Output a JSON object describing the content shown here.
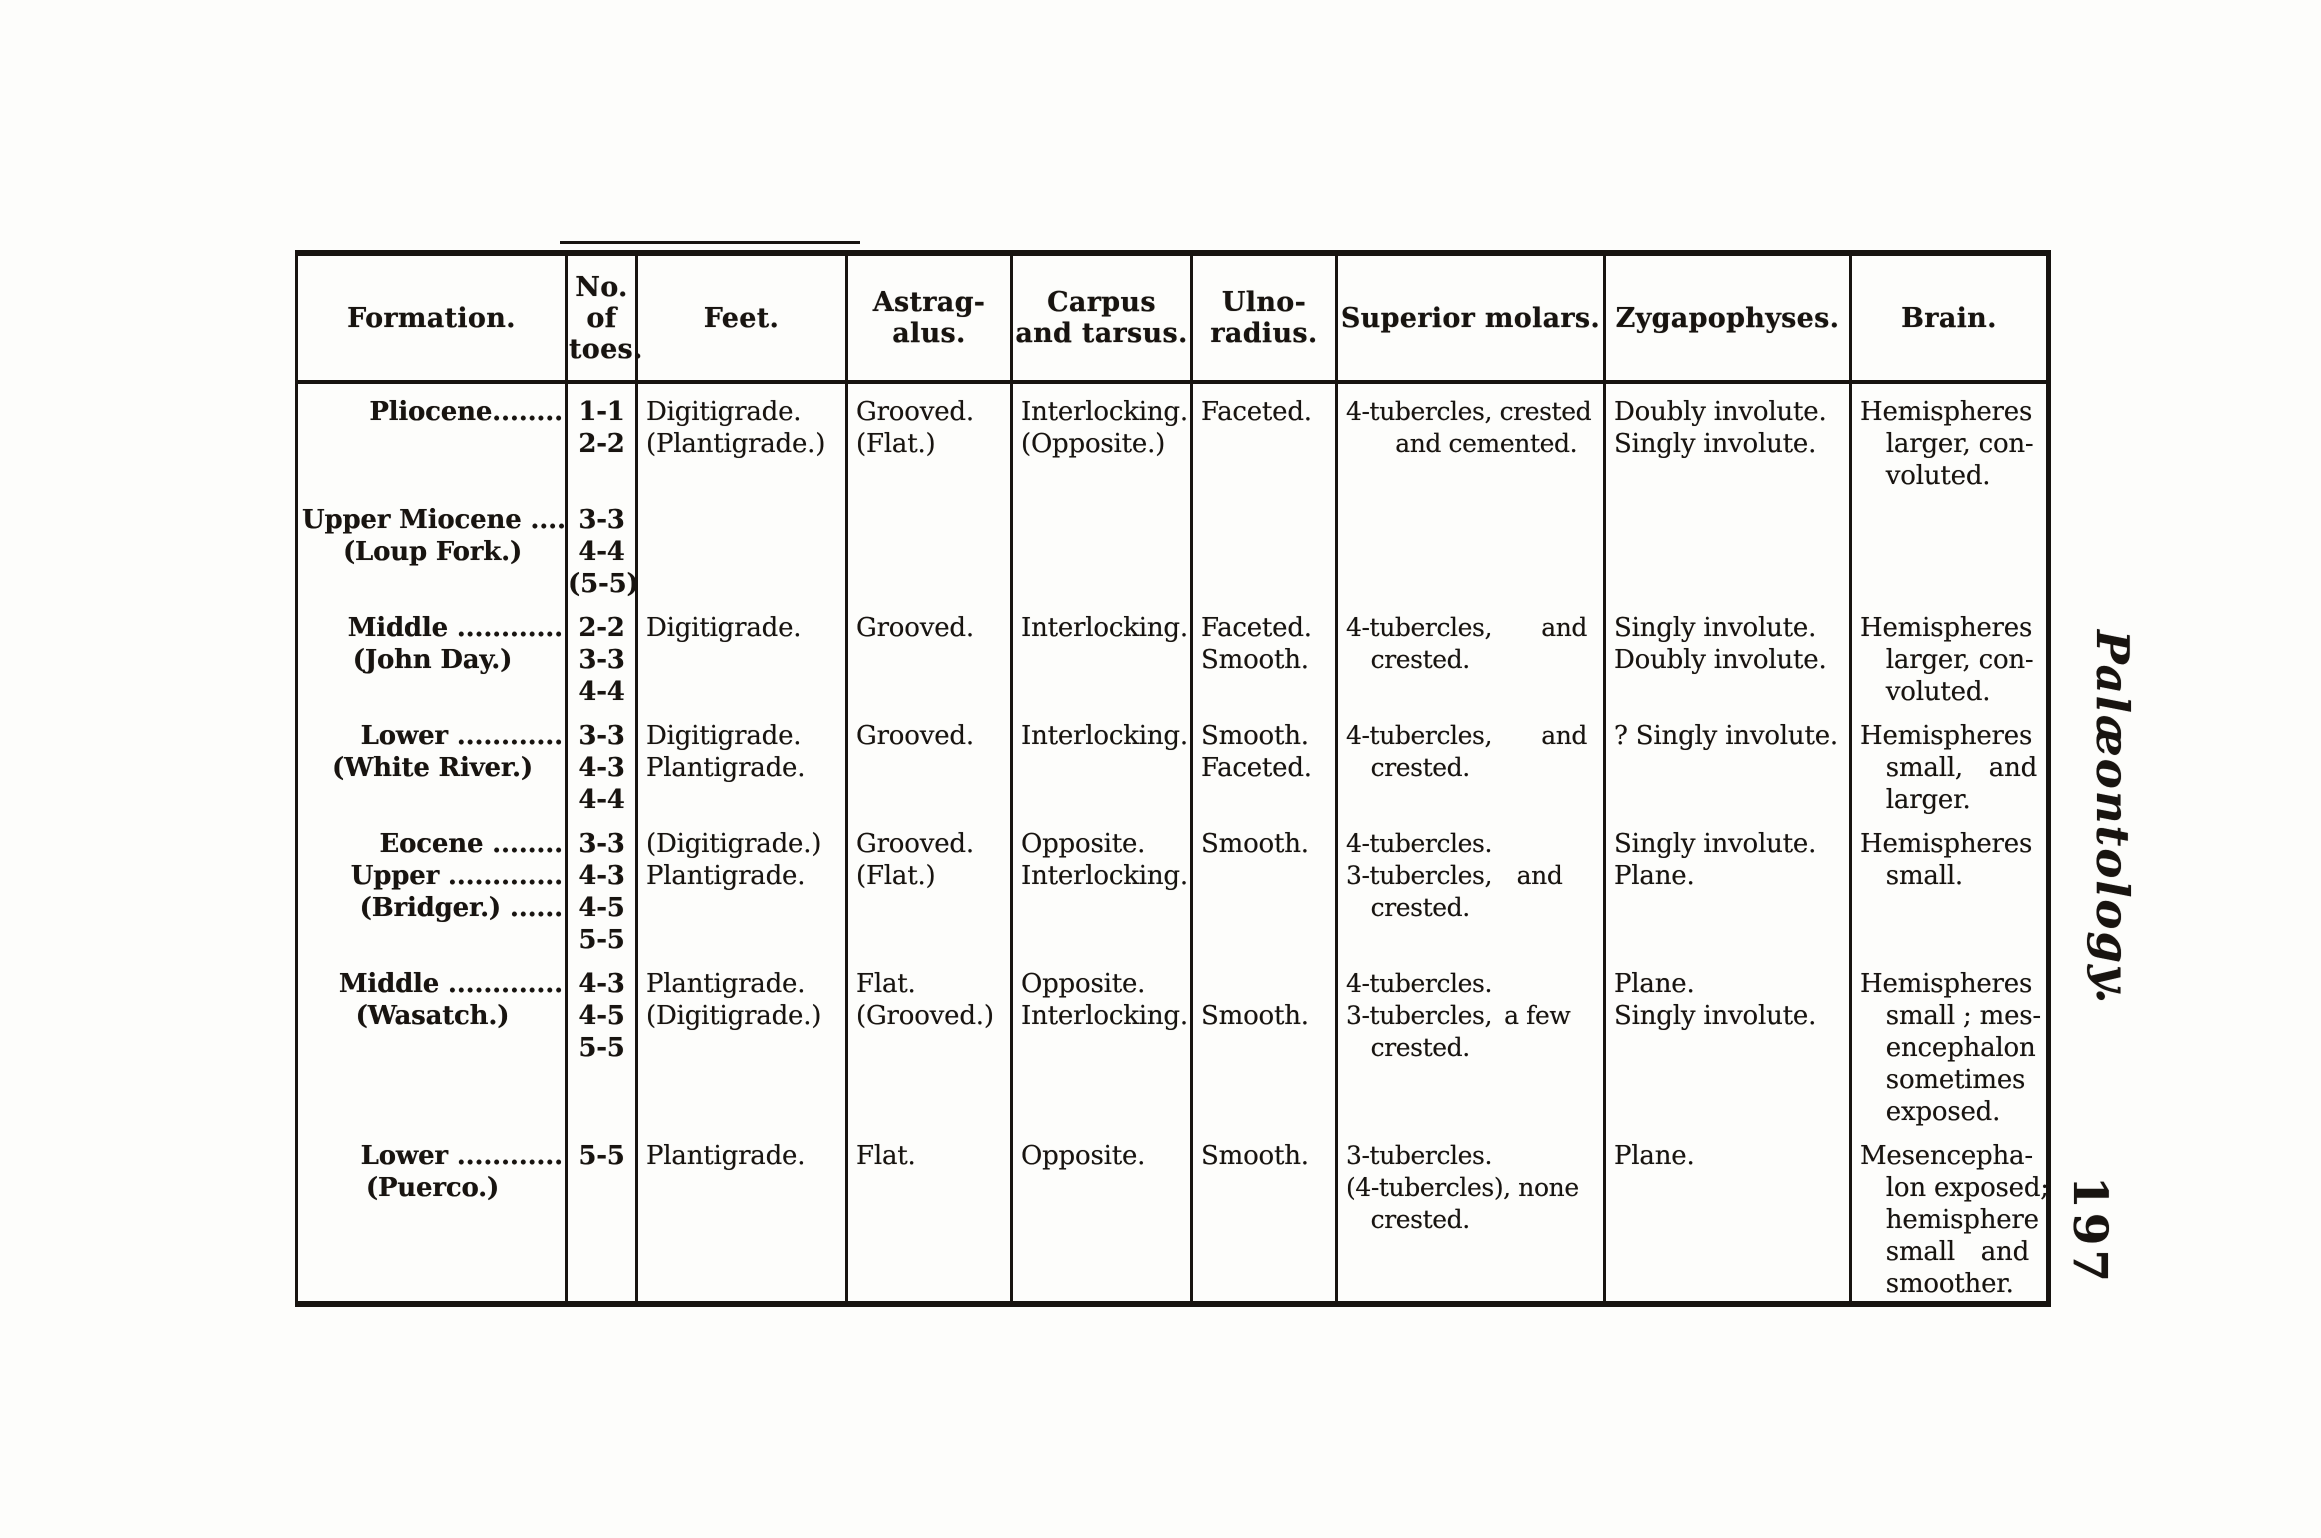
{
  "page": {
    "side_title": "Palæontology.",
    "page_number": "197",
    "ink_color": "#181410",
    "paper_color": "#fdfdfb"
  },
  "table": {
    "headers": [
      {
        "lines": [
          "Formation."
        ]
      },
      {
        "lines": [
          "No.",
          "of",
          "toes."
        ]
      },
      {
        "lines": [
          "Feet."
        ]
      },
      {
        "lines": [
          "Astrag-",
          "alus."
        ]
      },
      {
        "lines": [
          "Carpus",
          "and tarsus."
        ]
      },
      {
        "lines": [
          "Ulno-",
          "radius."
        ]
      },
      {
        "lines": [
          "Superior molars."
        ]
      },
      {
        "lines": [
          "Zygapophyses."
        ]
      },
      {
        "lines": [
          "Brain."
        ]
      }
    ],
    "rows": [
      {
        "formation": [
          "Pliocene........"
        ],
        "toes": [
          "1-1",
          "2-2"
        ],
        "feet": [
          "Digitigrade.",
          "(Plantigrade.)"
        ],
        "astragalus": [
          "Grooved.",
          "(Flat.)"
        ],
        "carpus": [
          "Interlocking.",
          "(Opposite.)"
        ],
        "ulno_radius": [
          "Faceted."
        ],
        "superior_molars": [
          "4-tubercles, crested",
          "  and cemented."
        ],
        "zygapophyses": [
          "Doubly involute.",
          "Singly involute."
        ],
        "brain": [
          "Hemispheres",
          " larger, con-",
          " voluted."
        ]
      },
      {
        "formation": [
          "Upper Miocene ....",
          "(Loup Fork.)"
        ],
        "toes": [
          "3-3",
          "4-4",
          "(5-5)"
        ],
        "feet": [],
        "astragalus": [],
        "carpus": [],
        "ulno_radius": [],
        "superior_molars": [],
        "zygapophyses": [],
        "brain": []
      },
      {
        "formation": [
          "Middle ............",
          "(John Day.)"
        ],
        "toes": [
          "2-2",
          "3-3",
          "4-4"
        ],
        "feet": [
          "Digitigrade."
        ],
        "astragalus": [
          "Grooved."
        ],
        "carpus": [
          "Interlocking."
        ],
        "ulno_radius": [
          "Faceted.",
          "Smooth."
        ],
        "superior_molars": [
          "4-tubercles,  and",
          " crested."
        ],
        "zygapophyses": [
          "Singly involute.",
          "Doubly involute."
        ],
        "brain": [
          "Hemispheres",
          " larger, con-",
          " voluted."
        ]
      },
      {
        "formation": [
          "Lower ............",
          "(White River.)"
        ],
        "toes": [
          "3-3",
          "4-3",
          "4-4"
        ],
        "feet": [
          "Digitigrade.",
          "Plantigrade."
        ],
        "astragalus": [
          "Grooved."
        ],
        "carpus": [
          "Interlocking."
        ],
        "ulno_radius": [
          "Smooth.",
          "Faceted."
        ],
        "superior_molars": [
          "4-tubercles,  and",
          " crested."
        ],
        "zygapophyses": [
          "? Singly involute."
        ],
        "brain": [
          "Hemispheres",
          " small, and",
          " larger."
        ]
      },
      {
        "formation": [
          "Eocene ........",
          "Upper .............",
          "(Bridger.) ......"
        ],
        "toes": [
          "3-3",
          "4-3",
          "4-5",
          "5-5"
        ],
        "feet": [
          "(Digitigrade.)",
          "Plantigrade."
        ],
        "astragalus": [
          "Grooved.",
          "(Flat.)"
        ],
        "carpus": [
          "Opposite.",
          "Interlocking."
        ],
        "ulno_radius": [
          "Smooth."
        ],
        "superior_molars": [
          "4-tubercles.",
          "3-tubercles, and",
          " crested."
        ],
        "zygapophyses": [
          "Singly involute.",
          "Plane."
        ],
        "brain": [
          "Hemispheres",
          " small."
        ]
      },
      {
        "formation": [
          "Middle .............",
          "(Wasatch.)"
        ],
        "toes": [
          "4-3",
          "4-5",
          "5-5"
        ],
        "feet": [
          "Plantigrade.",
          "(Digitigrade.)"
        ],
        "astragalus": [
          "Flat.",
          "(Grooved.)"
        ],
        "carpus": [
          "Opposite.",
          "Interlocking."
        ],
        "ulno_radius": [
          " ",
          "Smooth."
        ],
        "superior_molars": [
          "4-tubercles.",
          "3-tubercles, a few",
          " crested."
        ],
        "zygapophyses": [
          "Plane.",
          "Singly involute."
        ],
        "brain": [
          "Hemispheres",
          " small ; mes-",
          " encephalon",
          " sometimes",
          " exposed."
        ]
      },
      {
        "formation": [
          "Lower ............",
          "(Puerco.)"
        ],
        "toes": [
          "5-5"
        ],
        "feet": [
          "Plantigrade."
        ],
        "astragalus": [
          "Flat."
        ],
        "carpus": [
          "Opposite."
        ],
        "ulno_radius": [
          "Smooth."
        ],
        "superior_molars": [
          "3-tubercles.",
          "(4-tubercles), none",
          " crested."
        ],
        "zygapophyses": [
          "Plane."
        ],
        "brain": [
          "Mesencepha-",
          " lon exposed;",
          " hemisphere",
          " small and",
          " smoother."
        ]
      }
    ]
  }
}
